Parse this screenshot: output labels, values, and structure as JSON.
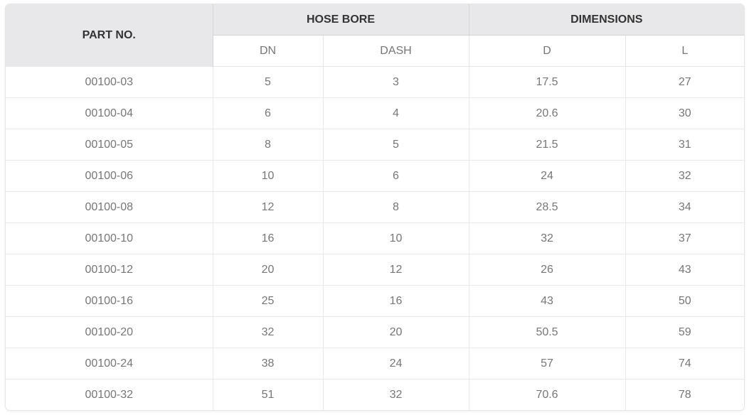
{
  "table": {
    "headers": {
      "part_no": "PART NO.",
      "hose_bore": "HOSE BORE",
      "dimensions": "DIMENSIONS",
      "sub": {
        "dn": "DN",
        "dash": "DASH",
        "d": "D",
        "l": "L"
      }
    },
    "rows": [
      {
        "part_no": "00100-03",
        "dn": "5",
        "dash": "3",
        "d": "17.5",
        "l": "27"
      },
      {
        "part_no": "00100-04",
        "dn": "6",
        "dash": "4",
        "d": "20.6",
        "l": "30"
      },
      {
        "part_no": "00100-05",
        "dn": "8",
        "dash": "5",
        "d": "21.5",
        "l": "31"
      },
      {
        "part_no": "00100-06",
        "dn": "10",
        "dash": "6",
        "d": "24",
        "l": "32"
      },
      {
        "part_no": "00100-08",
        "dn": "12",
        "dash": "8",
        "d": "28.5",
        "l": "34"
      },
      {
        "part_no": "00100-10",
        "dn": "16",
        "dash": "10",
        "d": "32",
        "l": "37"
      },
      {
        "part_no": "00100-12",
        "dn": "20",
        "dash": "12",
        "d": "26",
        "l": "43"
      },
      {
        "part_no": "00100-16",
        "dn": "25",
        "dash": "16",
        "d": "43",
        "l": "50"
      },
      {
        "part_no": "00100-20",
        "dn": "32",
        "dash": "20",
        "d": "50.5",
        "l": "59"
      },
      {
        "part_no": "00100-24",
        "dn": "38",
        "dash": "24",
        "d": "57",
        "l": "74"
      },
      {
        "part_no": "00100-32",
        "dn": "51",
        "dash": "32",
        "d": "70.6",
        "l": "78"
      }
    ]
  }
}
